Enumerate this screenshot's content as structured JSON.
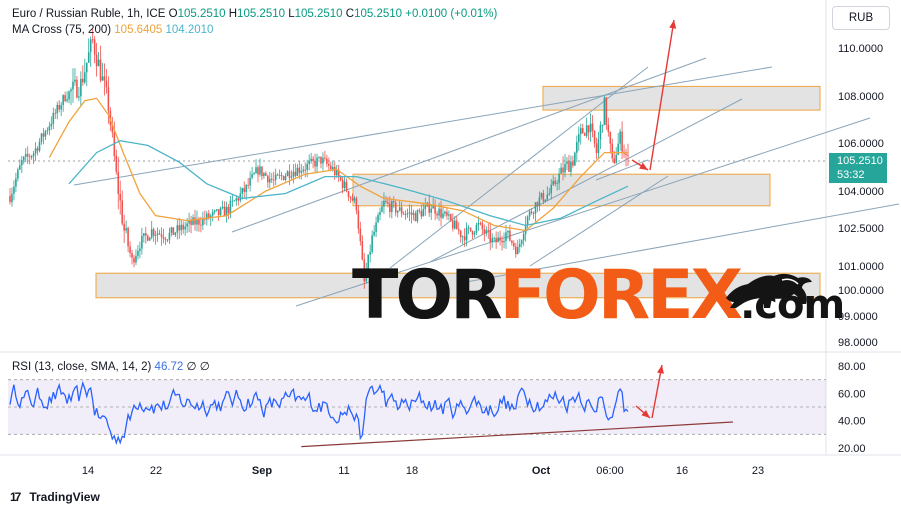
{
  "header": {
    "symbol_title": "Euro / Russian Ruble, 1h, ICE",
    "ohlc": [
      {
        "key": "O",
        "value": "105.2510"
      },
      {
        "key": "H",
        "value": "105.2510"
      },
      {
        "key": "L",
        "value": "105.2510"
      },
      {
        "key": "C",
        "value": "105.2510"
      }
    ],
    "change": "+0.0100 (+0.01%)",
    "ma_label": "MA Cross (75, 200)",
    "ma75_value": "105.6405",
    "ma200_value": "104.2010",
    "currency_button": "RUB"
  },
  "price_tag": {
    "price": "105.2510",
    "countdown": "53:32"
  },
  "rsi_header": {
    "label": "RSI (13, close, SMA, 14, 2)",
    "value": "46.72",
    "sym1": "∅",
    "sym2": "∅"
  },
  "watermark": {
    "part1": "TOR",
    "part2": "FOREX",
    "part3": ".com"
  },
  "footer": {
    "brand": "TradingView",
    "glyph": "17"
  },
  "colors": {
    "candle_up": "#26a69a",
    "candle_down": "#ef5350",
    "ma75": "#f0a33a",
    "ma200": "#4cb5c8",
    "rsi": "#2962ff",
    "zone_fill": "#d9d9d9",
    "zone_border": "#f0a33a",
    "arrow": "#e53935",
    "trendline": "#8aa4b8"
  },
  "chart_data": [
    {
      "type": "candlestick",
      "title": "Euro / Russian Ruble, 1h, ICE",
      "x_ticks": [
        "14",
        "22",
        "Sep",
        "11",
        "18",
        "Oct",
        "06:00",
        "16",
        "23"
      ],
      "y_ticks": [
        110.0,
        108.0,
        106.0,
        104.0,
        102.5,
        101.0,
        100.0,
        99.0,
        98.0
      ],
      "y_tick_labels": [
        "110.0000",
        "108.0000",
        "106.0000",
        "104.0000",
        "102.5000",
        "101.0000",
        "100.0000",
        "99.0000",
        "98.0000"
      ],
      "last_price": 105.251,
      "path_keys": [
        [
          0,
          103.8
        ],
        [
          6,
          105.2
        ],
        [
          12,
          105.6
        ],
        [
          20,
          106.8
        ],
        [
          28,
          108.0
        ],
        [
          36,
          108.5
        ],
        [
          42,
          110.3
        ],
        [
          46,
          109.0
        ],
        [
          50,
          107.6
        ],
        [
          54,
          104.6
        ],
        [
          58,
          102.4
        ],
        [
          62,
          101.2
        ],
        [
          66,
          101.9
        ],
        [
          72,
          102.4
        ],
        [
          80,
          102.2
        ],
        [
          90,
          102.6
        ],
        [
          100,
          102.9
        ],
        [
          110,
          103.2
        ],
        [
          120,
          104.1
        ],
        [
          126,
          104.9
        ],
        [
          134,
          104.4
        ],
        [
          142,
          104.8
        ],
        [
          150,
          105.0
        ],
        [
          158,
          105.3
        ],
        [
          164,
          104.9
        ],
        [
          170,
          104.2
        ],
        [
          176,
          103.4
        ],
        [
          180,
          100.3
        ],
        [
          184,
          102.1
        ],
        [
          190,
          103.5
        ],
        [
          198,
          103.2
        ],
        [
          206,
          103.0
        ],
        [
          214,
          103.4
        ],
        [
          222,
          102.9
        ],
        [
          230,
          102.2
        ],
        [
          238,
          102.6
        ],
        [
          246,
          101.9
        ],
        [
          252,
          102.3
        ],
        [
          258,
          101.6
        ],
        [
          262,
          102.8
        ],
        [
          268,
          103.6
        ],
        [
          274,
          103.9
        ],
        [
          280,
          104.8
        ],
        [
          286,
          105.3
        ],
        [
          290,
          106.4
        ],
        [
          294,
          106.8
        ],
        [
          298,
          105.6
        ],
        [
          302,
          107.6
        ],
        [
          306,
          105.1
        ],
        [
          310,
          106.2
        ],
        [
          314,
          105.251
        ]
      ],
      "series": [
        {
          "name": "MA 75",
          "color": "#f0a33a",
          "values": [
            [
              20,
              105.4
            ],
            [
              30,
              106.9
            ],
            [
              38,
              107.8
            ],
            [
              44,
              107.9
            ],
            [
              50,
              107.2
            ],
            [
              58,
              105.5
            ],
            [
              66,
              103.9
            ],
            [
              74,
              103.0
            ],
            [
              90,
              102.8
            ],
            [
              110,
              103.0
            ],
            [
              130,
              104.0
            ],
            [
              150,
              104.7
            ],
            [
              166,
              104.9
            ],
            [
              178,
              104.2
            ],
            [
              190,
              103.7
            ],
            [
              210,
              103.5
            ],
            [
              230,
              103.2
            ],
            [
              246,
              102.6
            ],
            [
              262,
              102.4
            ],
            [
              276,
              103.3
            ],
            [
              290,
              104.6
            ],
            [
              302,
              105.6
            ],
            [
              314,
              105.6
            ]
          ]
        },
        {
          "name": "MA 200",
          "color": "#4cb5c8",
          "values": [
            [
              30,
              104.3
            ],
            [
              44,
              105.6
            ],
            [
              56,
              106.1
            ],
            [
              70,
              105.9
            ],
            [
              86,
              105.2
            ],
            [
              100,
              104.3
            ],
            [
              118,
              103.7
            ],
            [
              140,
              103.9
            ],
            [
              160,
              104.6
            ],
            [
              176,
              104.6
            ],
            [
              200,
              104.1
            ],
            [
              222,
              103.6
            ],
            [
              244,
              103.0
            ],
            [
              262,
              102.6
            ],
            [
              280,
              102.9
            ],
            [
              298,
              103.6
            ],
            [
              314,
              104.2
            ]
          ]
        }
      ],
      "zones": [
        [
          108.4,
          107.4
        ],
        [
          104.7,
          103.4
        ],
        [
          100.7,
          99.7
        ]
      ],
      "forecast_arrow": {
        "from": [
          324,
          104.8
        ],
        "to": [
          332,
          111.1
        ]
      },
      "pullback_arrow": {
        "from": [
          316,
          105.6
        ],
        "to": [
          322,
          104.8
        ]
      }
    },
    {
      "type": "line",
      "title": "RSI (13, close, SMA, 14, 2)",
      "y_ticks": [
        80,
        60,
        40,
        20
      ],
      "y_tick_labels": [
        "80.00",
        "60.00",
        "40.00",
        "20.00"
      ],
      "band": [
        70,
        30
      ],
      "last_value": 46.72,
      "trend_support": {
        "from": [
          148,
          21
        ],
        "to": [
          365,
          39
        ]
      },
      "forecast_arrow": {
        "from": [
          325,
          39
        ],
        "to": [
          330,
          77
        ]
      }
    }
  ]
}
